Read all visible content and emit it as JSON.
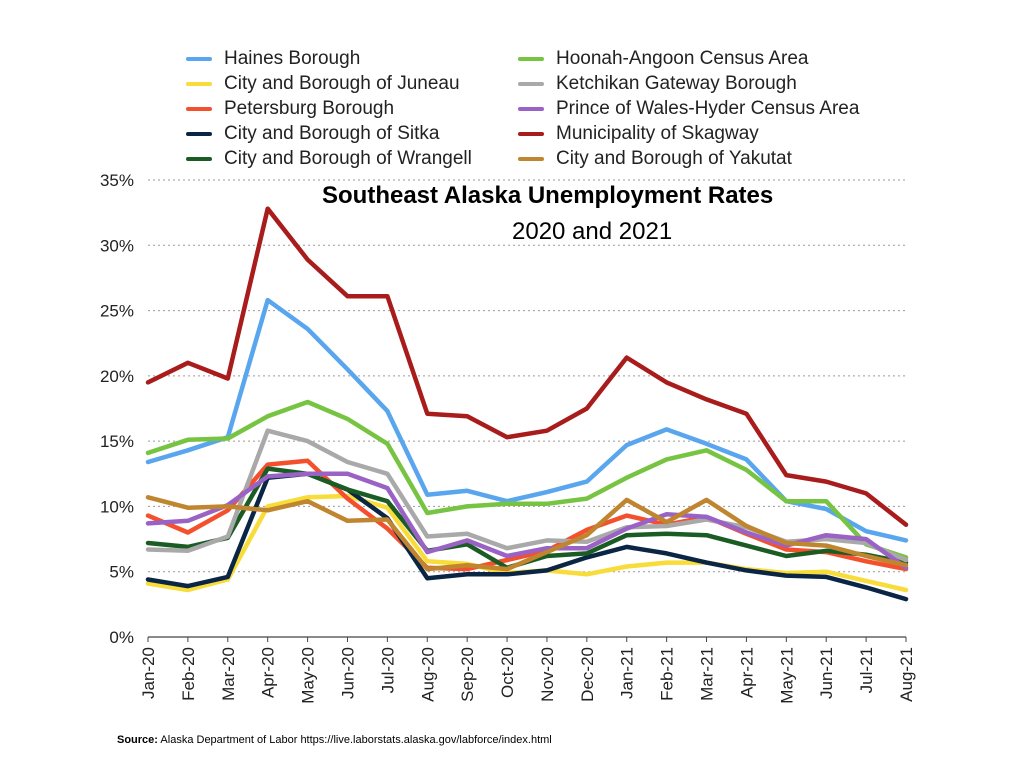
{
  "chart_data": {
    "type": "line",
    "title": "Southeast Alaska Unemployment Rates",
    "subtitle": "2020 and 2021",
    "xlabel": "",
    "ylabel": "",
    "ylim": [
      0,
      35
    ],
    "yticks": [
      "0%",
      "5%",
      "10%",
      "15%",
      "20%",
      "25%",
      "30%",
      "35%"
    ],
    "grid": "horizontal dotted",
    "legend_placement": "top",
    "categories": [
      "Jan-20",
      "Feb-20",
      "Mar-20",
      "Apr-20",
      "May-20",
      "Jun-20",
      "Jul-20",
      "Aug-20",
      "Sep-20",
      "Oct-20",
      "Nov-20",
      "Dec-20",
      "Jan-21",
      "Feb-21",
      "Mar-21",
      "Apr-21",
      "May-21",
      "Jun-21",
      "Jul-21",
      "Aug-21"
    ],
    "series": [
      {
        "name": "Haines Borough",
        "color": "#5aa6ee",
        "values": [
          13.4,
          14.3,
          15.3,
          25.8,
          23.6,
          20.5,
          17.3,
          10.9,
          11.2,
          10.4,
          11.1,
          11.9,
          14.7,
          15.9,
          14.8,
          13.6,
          10.4,
          9.8,
          8.1,
          7.4
        ]
      },
      {
        "name": "City and Borough of Juneau",
        "color": "#f8dc3a",
        "values": [
          4.1,
          3.6,
          4.4,
          10.0,
          10.7,
          10.8,
          9.9,
          5.8,
          5.6,
          4.9,
          5.1,
          4.8,
          5.4,
          5.7,
          5.7,
          5.2,
          4.9,
          5.0,
          4.3,
          3.6
        ]
      },
      {
        "name": "Petersburg Borough",
        "color": "#f4502e",
        "values": [
          9.3,
          8.0,
          9.7,
          13.2,
          13.5,
          10.6,
          8.3,
          5.3,
          5.2,
          5.9,
          6.6,
          8.2,
          9.3,
          8.6,
          9.2,
          7.9,
          6.7,
          6.5,
          5.8,
          5.2
        ]
      },
      {
        "name": "City and Borough of Sitka",
        "color": "#0a2644",
        "values": [
          4.4,
          3.9,
          4.6,
          12.2,
          12.5,
          11.3,
          9.1,
          4.5,
          4.8,
          4.8,
          5.1,
          6.1,
          6.9,
          6.4,
          5.7,
          5.1,
          4.7,
          4.6,
          3.8,
          2.9
        ]
      },
      {
        "name": "City and Borough of Wrangell",
        "color": "#1a5c24",
        "values": [
          7.2,
          6.9,
          7.6,
          12.9,
          12.5,
          11.3,
          10.4,
          6.6,
          7.1,
          5.3,
          6.2,
          6.4,
          7.8,
          7.9,
          7.8,
          7.0,
          6.2,
          6.6,
          6.3,
          5.7
        ]
      },
      {
        "name": "Hoonah-Angoon Census Area",
        "color": "#76c442",
        "values": [
          14.1,
          15.1,
          15.2,
          16.9,
          18.0,
          16.7,
          14.8,
          9.5,
          10.0,
          10.2,
          10.2,
          10.6,
          12.2,
          13.6,
          14.3,
          12.8,
          10.4,
          10.4,
          7.1,
          6.1
        ]
      },
      {
        "name": "Ketchikan Gateway Borough",
        "color": "#a9a9a9",
        "values": [
          6.7,
          6.6,
          7.7,
          15.8,
          15.0,
          13.4,
          12.5,
          7.7,
          7.9,
          6.8,
          7.4,
          7.3,
          8.4,
          8.5,
          9.0,
          8.4,
          7.3,
          7.5,
          7.2,
          5.9
        ]
      },
      {
        "name": "Prince of Wales-Hyder Census Area",
        "color": "#9a62c4",
        "values": [
          8.7,
          8.9,
          10.1,
          12.3,
          12.5,
          12.5,
          11.4,
          6.5,
          7.4,
          6.2,
          6.8,
          6.8,
          8.3,
          9.4,
          9.2,
          8.0,
          7.0,
          7.8,
          7.5,
          5.3
        ]
      },
      {
        "name": "Municipality of Skagway",
        "color": "#a81c1c",
        "values": [
          19.5,
          21.0,
          19.8,
          32.8,
          28.9,
          26.1,
          26.1,
          17.1,
          16.9,
          15.3,
          15.8,
          17.5,
          21.4,
          19.5,
          18.2,
          17.1,
          12.4,
          11.9,
          11.0,
          8.6
        ]
      },
      {
        "name": "City and Borough of Yakutat",
        "color": "#c0852f",
        "values": [
          10.7,
          9.9,
          10.0,
          9.7,
          10.4,
          8.9,
          9.0,
          5.2,
          5.5,
          5.2,
          6.5,
          7.8,
          10.5,
          8.8,
          10.5,
          8.5,
          7.2,
          7.0,
          6.2,
          5.5
        ]
      }
    ]
  },
  "source": {
    "label": "Source:",
    "text": "Alaska Department of Labor https://live.laborstats.alaska.gov/labforce/index.html"
  }
}
